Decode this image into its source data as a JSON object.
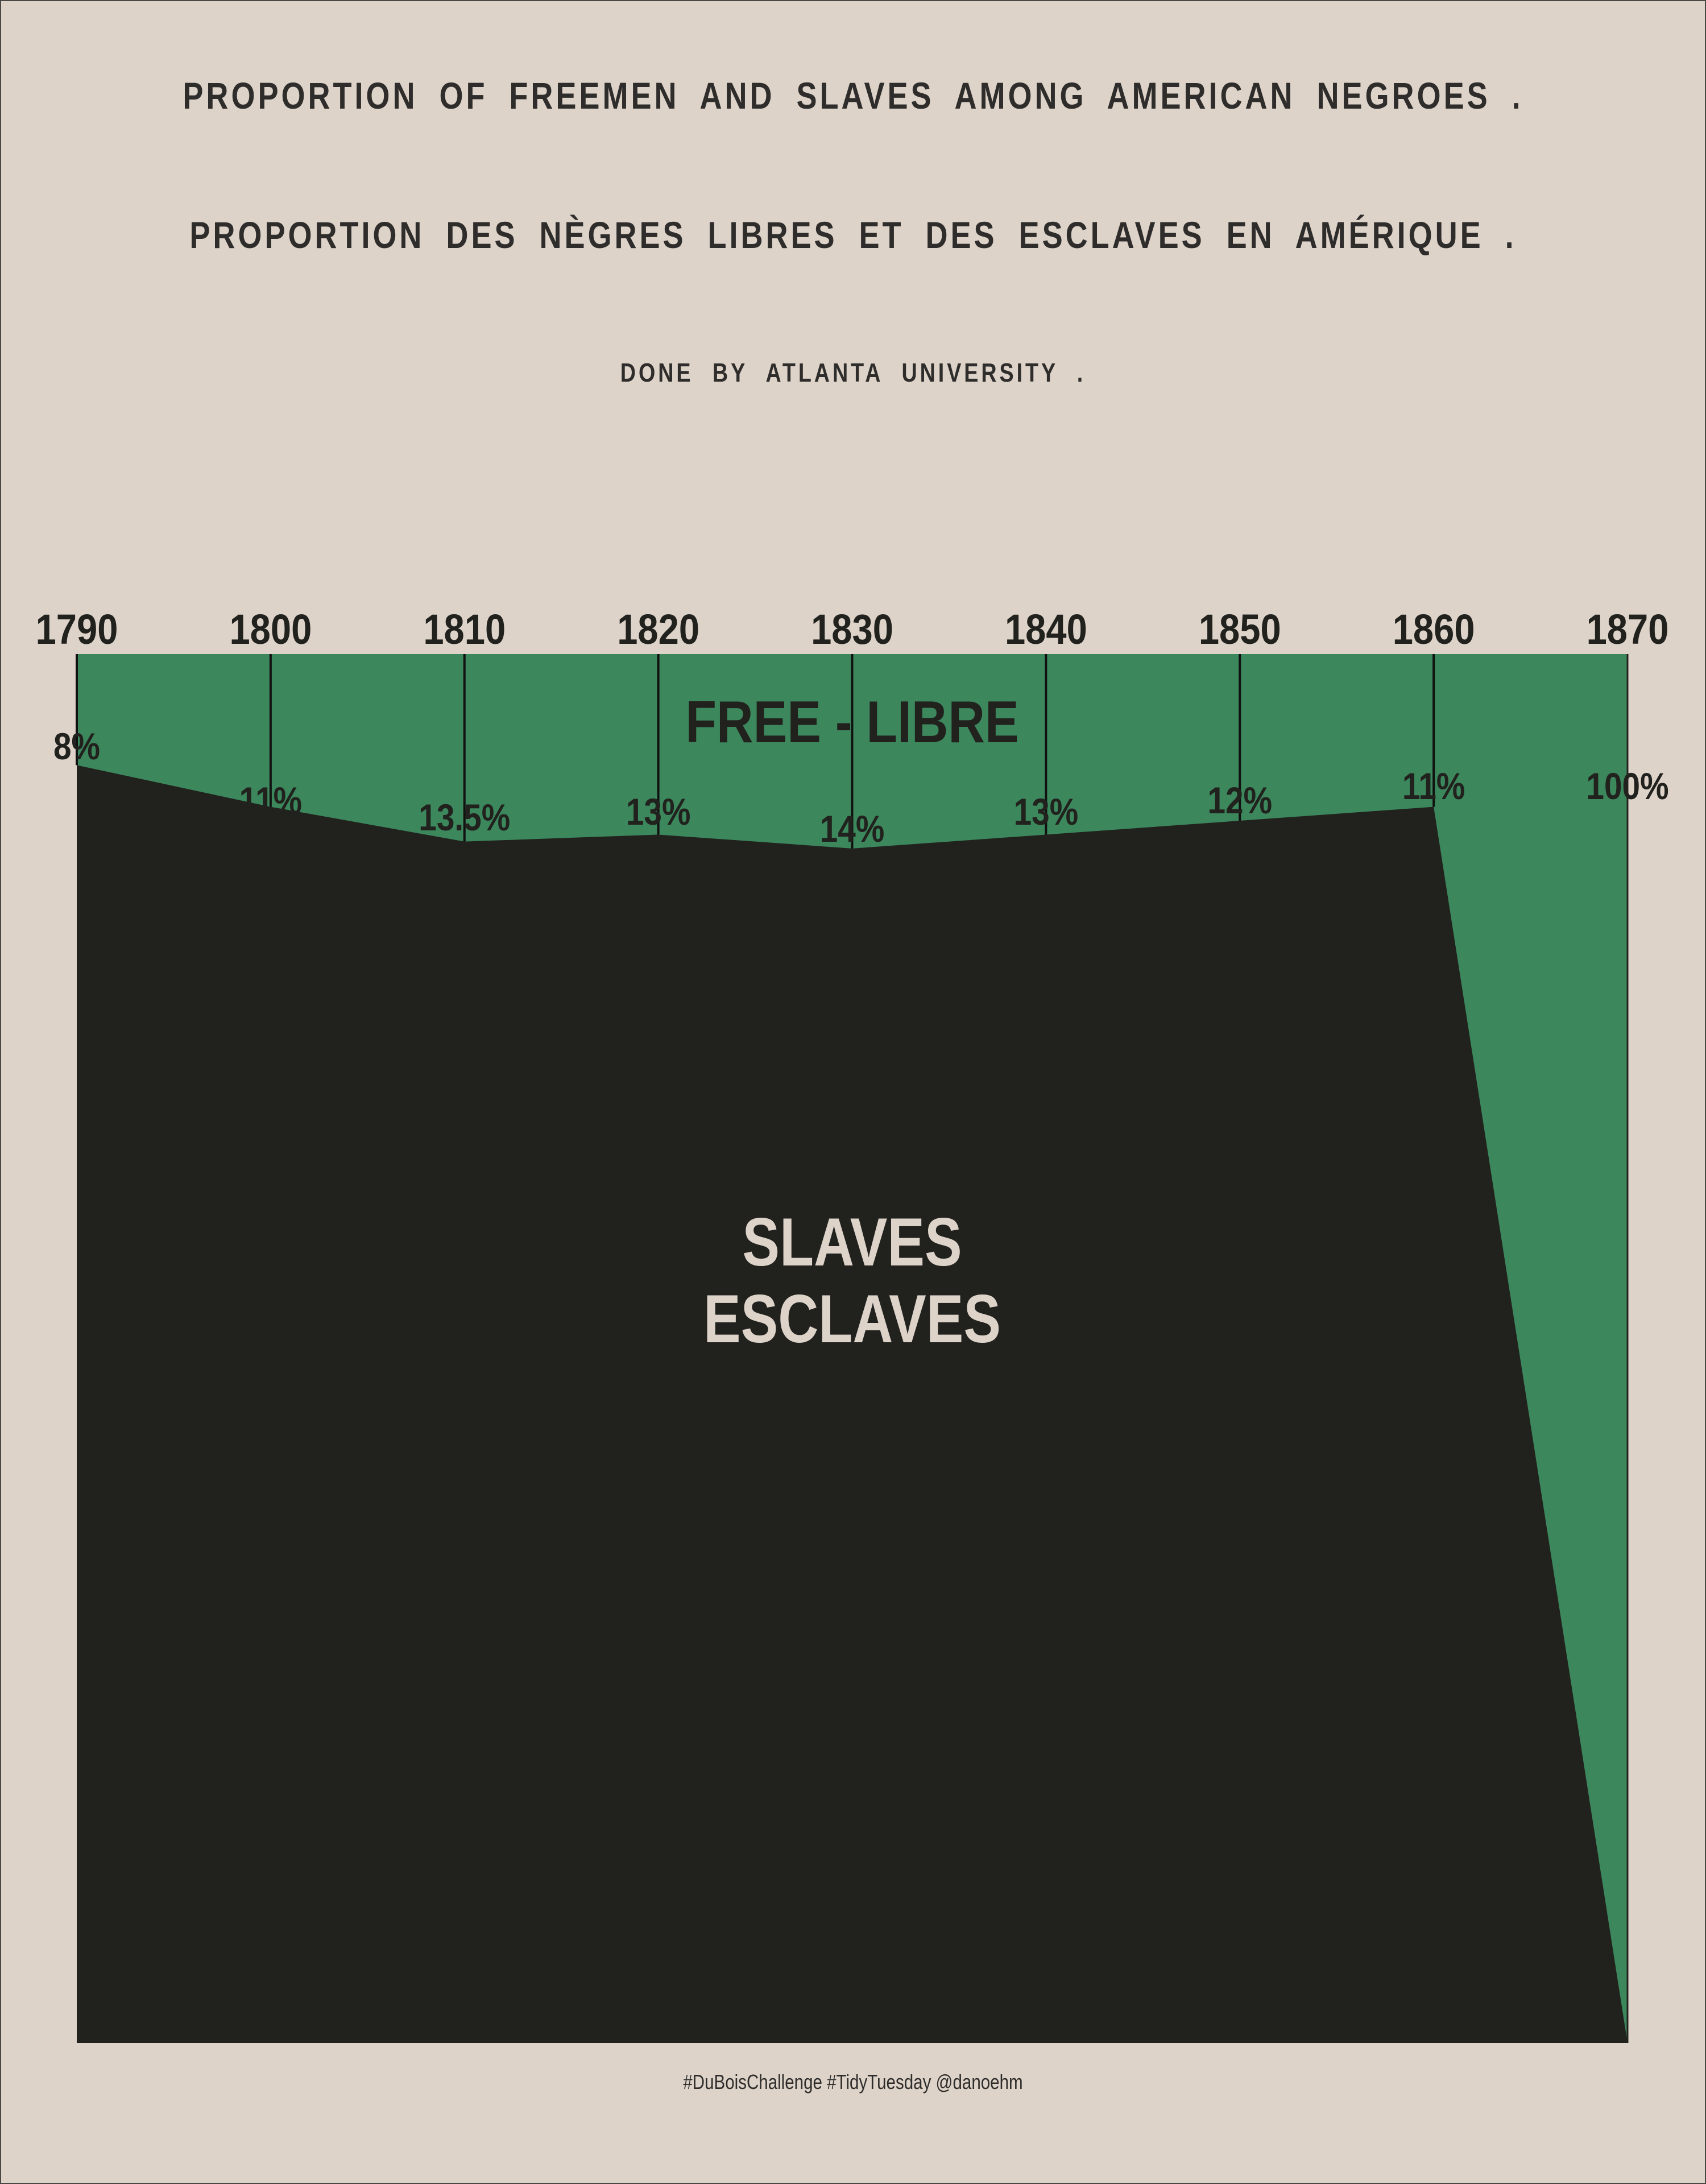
{
  "header": {
    "title_en": "PROPORTION OF FREEMEN AND SLAVES AMONG AMERICAN NEGROES .",
    "title_fr": "PROPORTION DES NÈGRES LIBRES ET DES ESCLAVES EN AMÉRIQUE .",
    "subtitle": "DONE BY ATLANTA UNIVERSITY ."
  },
  "footer": {
    "caption": "#DuBoisChallenge #TidyTuesday @danoehm"
  },
  "colors": {
    "background": "#ddd3c9",
    "free": "#3c875c",
    "slaves": "#21211e",
    "text": "#2a2826",
    "slaves_label": "#ddd3c9"
  },
  "chart_data": {
    "type": "area",
    "title": "PROPORTION OF FREEMEN AND SLAVES AMONG AMERICAN NEGROES .",
    "x": [
      1790,
      1800,
      1810,
      1820,
      1830,
      1840,
      1850,
      1860,
      1870
    ],
    "x_tick_labels": [
      "1790",
      "1800",
      "1810",
      "1820",
      "1830",
      "1840",
      "1850",
      "1860",
      "1870"
    ],
    "series": [
      {
        "name": "FREE - LIBRE",
        "values": [
          8,
          11,
          13.5,
          13,
          14,
          13,
          12,
          11,
          100
        ],
        "value_labels": [
          "8%",
          "11%",
          "13.5%",
          "13%",
          "14%",
          "13%",
          "12%",
          "11%",
          "100%"
        ]
      },
      {
        "name": "SLAVES ESCLAVES",
        "values": [
          92,
          89,
          86.5,
          87,
          86,
          87,
          88,
          89,
          0
        ]
      }
    ],
    "area_labels": {
      "free": "FREE  -  LIBRE",
      "slaves_line1": "SLAVES",
      "slaves_line2": "ESCLAVES"
    },
    "ylim": [
      0,
      100
    ],
    "y_direction": "top-down",
    "xlabel": "",
    "ylabel": "",
    "axis_position": "top",
    "grid": false,
    "legend": "none"
  }
}
